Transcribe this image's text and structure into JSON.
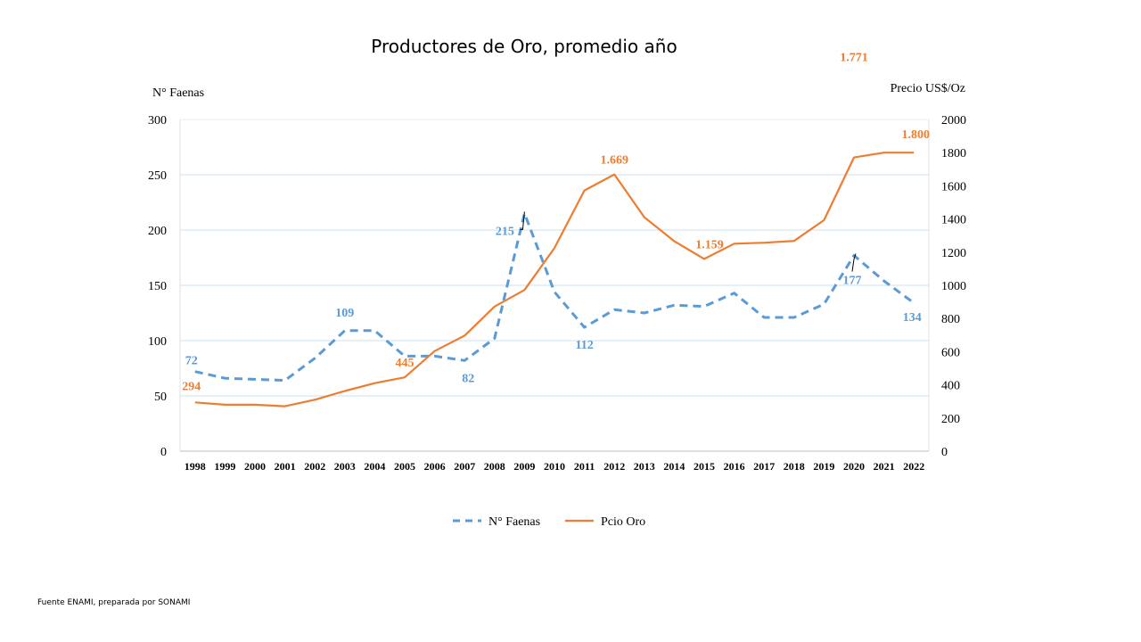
{
  "title": "Productores de Oro,  promedio año",
  "source": "Fuente ENAMI, preparada por SONAMI",
  "chart_data": {
    "type": "line",
    "title": "Productores de Oro,  promedio año",
    "y_left_label": "N° Faenas",
    "y_right_label": "Precio US$/Oz",
    "y_left_range": [
      0,
      300
    ],
    "y_left_ticks": [
      "0",
      "50",
      "100",
      "150",
      "200",
      "250",
      "300"
    ],
    "y_right_range": [
      0,
      2000
    ],
    "y_right_ticks": [
      "0",
      "200",
      "400",
      "600",
      "800",
      "1000",
      "1200",
      "1400",
      "1600",
      "1800",
      "2000"
    ],
    "x": [
      "1998",
      "1999",
      "2000",
      "2001",
      "2002",
      "2003",
      "2004",
      "2005",
      "2006",
      "2007",
      "2008",
      "2009",
      "2010",
      "2011",
      "2012",
      "2013",
      "2014",
      "2015",
      "2016",
      "2017",
      "2018",
      "2019",
      "2020",
      "2021",
      "2022"
    ],
    "grid": "horizontal",
    "legend_position": "bottom",
    "series": [
      {
        "name": "N° Faenas",
        "axis": "left",
        "color": "#5B9BD5",
        "style": "dashed",
        "values": [
          72,
          66,
          65,
          64,
          84,
          109,
          109,
          86,
          86,
          82,
          102,
          215,
          144,
          112,
          128,
          125,
          132,
          131,
          143,
          121,
          121,
          133,
          177,
          154,
          134
        ],
        "data_labels": [
          {
            "index": 0,
            "text": "72"
          },
          {
            "index": 5,
            "text": "109"
          },
          {
            "index": 9,
            "text": "82"
          },
          {
            "index": 11,
            "text": "215"
          },
          {
            "index": 13,
            "text": "112"
          },
          {
            "index": 22,
            "text": "177"
          },
          {
            "index": 24,
            "text": "134"
          }
        ]
      },
      {
        "name": "Pcio Oro",
        "axis": "right",
        "color": "#ED7D31",
        "style": "solid",
        "values": [
          294,
          280,
          280,
          271,
          310,
          363,
          410,
          445,
          604,
          697,
          872,
          972,
          1225,
          1572,
          1669,
          1411,
          1266,
          1159,
          1251,
          1257,
          1268,
          1393,
          1771,
          1800,
          1800
        ],
        "data_labels": [
          {
            "index": 0,
            "text": "294"
          },
          {
            "index": 7,
            "text": "445"
          },
          {
            "index": 14,
            "text": "1.669"
          },
          {
            "index": 17,
            "text": "1.159"
          },
          {
            "index": 22,
            "text": "1.771"
          },
          {
            "index": 24,
            "text": "1.800"
          }
        ]
      }
    ]
  }
}
